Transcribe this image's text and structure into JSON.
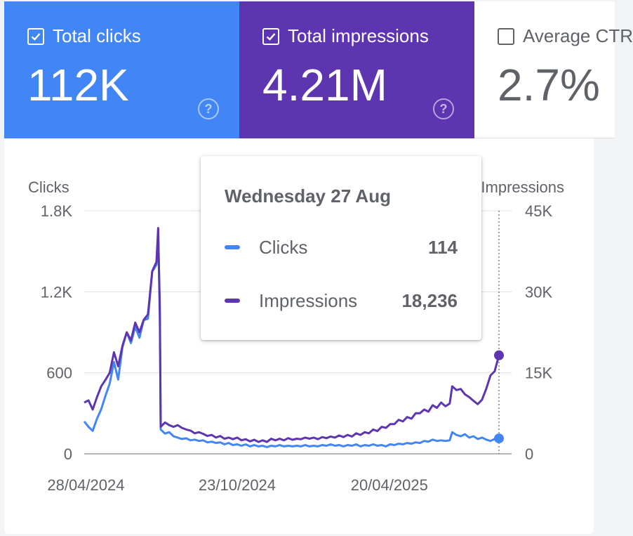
{
  "metrics": [
    {
      "label": "Total clicks",
      "value": "112K",
      "checked": true,
      "help": "?"
    },
    {
      "label": "Total impressions",
      "value": "4.21M",
      "checked": true,
      "help": "?"
    },
    {
      "label": "Average CTR",
      "value": "2.7%",
      "checked": false
    }
  ],
  "tooltip": {
    "date": "Wednesday 27 Aug",
    "rows": [
      {
        "label": "Clicks",
        "value": "114",
        "color": "#4285f4"
      },
      {
        "label": "Impressions",
        "value": "18,236",
        "color": "#5e35b1"
      }
    ]
  },
  "colors": {
    "clicks": "#4285f4",
    "impressions": "#5e35b1",
    "ctr_card_text": "#5f6368"
  },
  "chart_data": {
    "type": "line",
    "y_left_label": "Clicks",
    "y_right_label": "Impressions",
    "y_left_ticks": [
      "0",
      "600",
      "1.2K",
      "1.8K"
    ],
    "y_right_ticks": [
      "0",
      "15K",
      "30K",
      "45K"
    ],
    "y_left_range": [
      0,
      1800
    ],
    "y_right_range": [
      0,
      45000
    ],
    "x_tick_labels": [
      "28/04/2024",
      "23/10/2024",
      "20/04/2025"
    ],
    "x_tick_dates": [
      "2024-04-28",
      "2024-10-23",
      "2025-04-20"
    ],
    "x_range": [
      "2024-04-26",
      "2025-08-27"
    ],
    "grid": true,
    "highlight_date": "2025-08-27",
    "series": [
      {
        "name": "Clicks",
        "color": "#4285f4",
        "axis": "left",
        "points": [
          [
            "2024-04-26",
            240
          ],
          [
            "2024-05-01",
            200
          ],
          [
            "2024-05-06",
            170
          ],
          [
            "2024-05-11",
            260
          ],
          [
            "2024-05-16",
            330
          ],
          [
            "2024-05-21",
            430
          ],
          [
            "2024-05-26",
            520
          ],
          [
            "2024-05-31",
            680
          ],
          [
            "2024-06-05",
            550
          ],
          [
            "2024-06-10",
            790
          ],
          [
            "2024-06-15",
            900
          ],
          [
            "2024-06-20",
            820
          ],
          [
            "2024-06-25",
            940
          ],
          [
            "2024-06-30",
            860
          ],
          [
            "2024-07-05",
            990
          ],
          [
            "2024-07-10",
            1000
          ],
          [
            "2024-07-15",
            1350
          ],
          [
            "2024-07-20",
            1400
          ],
          [
            "2024-07-22",
            1620
          ],
          [
            "2024-07-24",
            1100
          ],
          [
            "2024-07-25",
            180
          ],
          [
            "2024-07-30",
            150
          ],
          [
            "2024-08-04",
            160
          ],
          [
            "2024-08-09",
            130
          ],
          [
            "2024-08-14",
            120
          ],
          [
            "2024-08-19",
            110
          ],
          [
            "2024-08-24",
            115
          ],
          [
            "2024-08-29",
            100
          ],
          [
            "2024-09-03",
            105
          ],
          [
            "2024-09-08",
            95
          ],
          [
            "2024-09-13",
            100
          ],
          [
            "2024-09-18",
            85
          ],
          [
            "2024-09-23",
            90
          ],
          [
            "2024-09-28",
            80
          ],
          [
            "2024-10-03",
            85
          ],
          [
            "2024-10-08",
            70
          ],
          [
            "2024-10-13",
            80
          ],
          [
            "2024-10-18",
            65
          ],
          [
            "2024-10-23",
            70
          ],
          [
            "2024-10-28",
            60
          ],
          [
            "2024-11-02",
            70
          ],
          [
            "2024-11-07",
            55
          ],
          [
            "2024-11-12",
            65
          ],
          [
            "2024-11-17",
            55
          ],
          [
            "2024-11-22",
            60
          ],
          [
            "2024-11-27",
            50
          ],
          [
            "2024-12-02",
            60
          ],
          [
            "2024-12-07",
            55
          ],
          [
            "2024-12-12",
            65
          ],
          [
            "2024-12-17",
            55
          ],
          [
            "2024-12-22",
            60
          ],
          [
            "2024-12-27",
            55
          ],
          [
            "2025-01-01",
            60
          ],
          [
            "2025-01-06",
            55
          ],
          [
            "2025-01-11",
            65
          ],
          [
            "2025-01-16",
            55
          ],
          [
            "2025-01-21",
            60
          ],
          [
            "2025-01-26",
            55
          ],
          [
            "2025-01-31",
            65
          ],
          [
            "2025-02-05",
            60
          ],
          [
            "2025-02-10",
            70
          ],
          [
            "2025-02-15",
            60
          ],
          [
            "2025-02-20",
            65
          ],
          [
            "2025-02-25",
            55
          ],
          [
            "2025-03-02",
            65
          ],
          [
            "2025-03-07",
            60
          ],
          [
            "2025-03-12",
            70
          ],
          [
            "2025-03-17",
            55
          ],
          [
            "2025-03-22",
            65
          ],
          [
            "2025-03-27",
            60
          ],
          [
            "2025-04-01",
            70
          ],
          [
            "2025-04-06",
            60
          ],
          [
            "2025-04-11",
            65
          ],
          [
            "2025-04-16",
            55
          ],
          [
            "2025-04-21",
            70
          ],
          [
            "2025-04-26",
            65
          ],
          [
            "2025-05-01",
            75
          ],
          [
            "2025-05-06",
            70
          ],
          [
            "2025-05-11",
            80
          ],
          [
            "2025-05-16",
            75
          ],
          [
            "2025-05-21",
            85
          ],
          [
            "2025-05-26",
            80
          ],
          [
            "2025-05-31",
            95
          ],
          [
            "2025-06-05",
            90
          ],
          [
            "2025-06-10",
            105
          ],
          [
            "2025-06-15",
            95
          ],
          [
            "2025-06-20",
            100
          ],
          [
            "2025-06-25",
            95
          ],
          [
            "2025-06-30",
            100
          ],
          [
            "2025-07-03",
            160
          ],
          [
            "2025-07-08",
            140
          ],
          [
            "2025-07-13",
            130
          ],
          [
            "2025-07-18",
            145
          ],
          [
            "2025-07-23",
            120
          ],
          [
            "2025-07-28",
            130
          ],
          [
            "2025-08-02",
            110
          ],
          [
            "2025-08-07",
            120
          ],
          [
            "2025-08-12",
            105
          ],
          [
            "2025-08-17",
            95
          ],
          [
            "2025-08-22",
            110
          ],
          [
            "2025-08-27",
            114
          ]
        ]
      },
      {
        "name": "Impressions",
        "color": "#5e35b1",
        "axis": "right",
        "points": [
          [
            "2024-04-26",
            9500
          ],
          [
            "2024-05-01",
            9900
          ],
          [
            "2024-05-06",
            8200
          ],
          [
            "2024-05-11",
            10500
          ],
          [
            "2024-05-16",
            12500
          ],
          [
            "2024-05-21",
            13700
          ],
          [
            "2024-05-26",
            15000
          ],
          [
            "2024-05-31",
            18800
          ],
          [
            "2024-06-05",
            16200
          ],
          [
            "2024-06-10",
            20000
          ],
          [
            "2024-06-15",
            22500
          ],
          [
            "2024-06-20",
            21000
          ],
          [
            "2024-06-25",
            24300
          ],
          [
            "2024-06-30",
            22500
          ],
          [
            "2024-07-05",
            24800
          ],
          [
            "2024-07-10",
            25800
          ],
          [
            "2024-07-15",
            33800
          ],
          [
            "2024-07-20",
            35500
          ],
          [
            "2024-07-22",
            41800
          ],
          [
            "2024-07-24",
            25000
          ],
          [
            "2024-07-25",
            5000
          ],
          [
            "2024-07-30",
            5800
          ],
          [
            "2024-08-04",
            5300
          ],
          [
            "2024-08-09",
            5000
          ],
          [
            "2024-08-14",
            5300
          ],
          [
            "2024-08-19",
            4800
          ],
          [
            "2024-08-24",
            4500
          ],
          [
            "2024-08-29",
            4300
          ],
          [
            "2024-09-03",
            3800
          ],
          [
            "2024-09-08",
            4000
          ],
          [
            "2024-09-13",
            3700
          ],
          [
            "2024-09-18",
            3300
          ],
          [
            "2024-09-23",
            3500
          ],
          [
            "2024-09-28",
            3000
          ],
          [
            "2024-10-03",
            3300
          ],
          [
            "2024-10-08",
            2800
          ],
          [
            "2024-10-13",
            3000
          ],
          [
            "2024-10-18",
            2700
          ],
          [
            "2024-10-23",
            3000
          ],
          [
            "2024-10-28",
            2500
          ],
          [
            "2024-11-02",
            2700
          ],
          [
            "2024-11-07",
            2300
          ],
          [
            "2024-11-12",
            2600
          ],
          [
            "2024-11-17",
            2200
          ],
          [
            "2024-11-22",
            2500
          ],
          [
            "2024-11-27",
            2200
          ],
          [
            "2024-12-02",
            2800
          ],
          [
            "2024-12-07",
            2500
          ],
          [
            "2024-12-12",
            2800
          ],
          [
            "2024-12-17",
            2500
          ],
          [
            "2024-12-22",
            2900
          ],
          [
            "2024-12-27",
            2600
          ],
          [
            "2025-01-01",
            2800
          ],
          [
            "2025-01-06",
            2700
          ],
          [
            "2025-01-11",
            3000
          ],
          [
            "2025-01-16",
            2800
          ],
          [
            "2025-01-21",
            3000
          ],
          [
            "2025-01-26",
            2700
          ],
          [
            "2025-01-31",
            3100
          ],
          [
            "2025-02-05",
            2900
          ],
          [
            "2025-02-10",
            3200
          ],
          [
            "2025-02-15",
            3000
          ],
          [
            "2025-02-20",
            3400
          ],
          [
            "2025-02-25",
            3100
          ],
          [
            "2025-03-02",
            3500
          ],
          [
            "2025-03-07",
            3200
          ],
          [
            "2025-03-12",
            3800
          ],
          [
            "2025-03-17",
            3500
          ],
          [
            "2025-03-22",
            4000
          ],
          [
            "2025-03-27",
            3800
          ],
          [
            "2025-04-01",
            4500
          ],
          [
            "2025-04-06",
            4200
          ],
          [
            "2025-04-11",
            5000
          ],
          [
            "2025-04-16",
            4800
          ],
          [
            "2025-04-21",
            5500
          ],
          [
            "2025-04-26",
            5500
          ],
          [
            "2025-05-01",
            6300
          ],
          [
            "2025-05-06",
            6000
          ],
          [
            "2025-05-11",
            6800
          ],
          [
            "2025-05-16",
            6500
          ],
          [
            "2025-05-21",
            7500
          ],
          [
            "2025-05-26",
            7500
          ],
          [
            "2025-05-31",
            8200
          ],
          [
            "2025-06-05",
            7800
          ],
          [
            "2025-06-10",
            9000
          ],
          [
            "2025-06-15",
            8500
          ],
          [
            "2025-06-20",
            9500
          ],
          [
            "2025-06-25",
            8800
          ],
          [
            "2025-06-30",
            9300
          ],
          [
            "2025-07-03",
            12500
          ],
          [
            "2025-07-08",
            11800
          ],
          [
            "2025-07-13",
            12000
          ],
          [
            "2025-07-18",
            11000
          ],
          [
            "2025-07-23",
            10500
          ],
          [
            "2025-07-28",
            9800
          ],
          [
            "2025-08-02",
            9200
          ],
          [
            "2025-08-07",
            10000
          ],
          [
            "2025-08-12",
            12000
          ],
          [
            "2025-08-17",
            14500
          ],
          [
            "2025-08-22",
            15300
          ],
          [
            "2025-08-27",
            18236
          ]
        ]
      }
    ]
  }
}
